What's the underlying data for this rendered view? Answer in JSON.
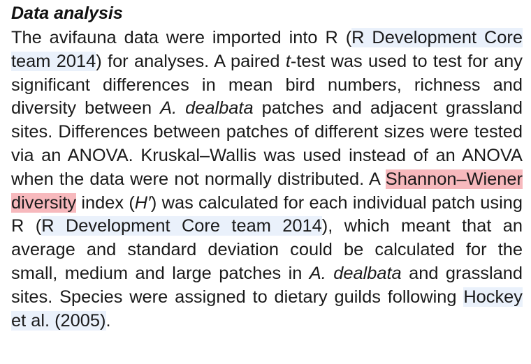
{
  "heading": "Data analysis",
  "paragraph": {
    "s1": "The avifauna data were imported into R (",
    "ref1": "R Development Core team 2014",
    "s2": ") for analyses. A paired ",
    "t": "t",
    "s3": "-test was used to test for any significant differences in mean bird numbers, richness and diversity between ",
    "species1": "A. dealbata",
    "s4": " patches and adjacent grassland sites. Differences between patches of different sizes were tested via an ANOVA. Kruskal–Wallis was used instead of an ANOVA when the data were not normally distributed. A ",
    "highlight": "Shannon–Wiener diversity",
    "s5": " index (",
    "h_symbol": "H′",
    "s6": ") was calculated for each individual patch using R (",
    "ref2": "R Development Core team 2014",
    "s7": "), which meant that an average and standard deviation could be calculated for the small, medium and large patches in ",
    "species2": "A. dealbata",
    "s8": " and grassland sites. Species were assigned to dietary guilds following ",
    "ref3": "Hockey et al. (2005)",
    "s9": "."
  },
  "colors": {
    "highlight": "#f7b9bd",
    "citation_link": "#eaf1fb",
    "text": "#1a1a1a"
  }
}
